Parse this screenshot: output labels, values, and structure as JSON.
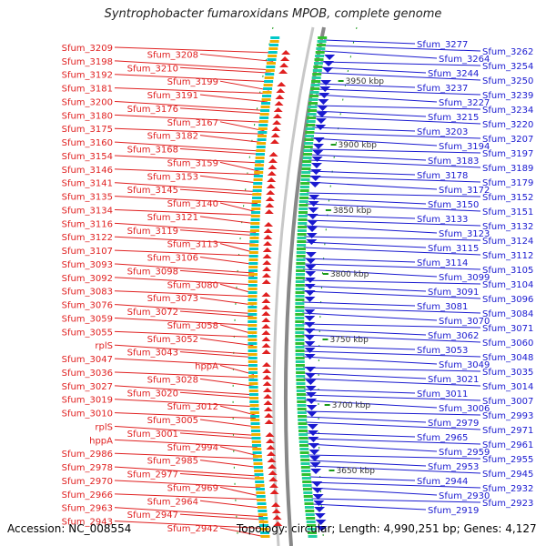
{
  "title": "Syntrophobacter fumaroxidans MPOB, complete genome",
  "footer": {
    "accession": "Accession: NC_008554",
    "topology": "Topology: circular; Length: 4,990,251 bp; Genes: 4,127"
  },
  "kbp_labels": [
    "3950 kbp",
    "3900 kbp",
    "3850 kbp",
    "3800 kbp",
    "3750 kbp",
    "3700 kbp",
    "3650 kbp"
  ],
  "left_labels": [
    "Sfum_3209",
    "Sfum_3208",
    "Sfum_3198",
    "Sfum_3210",
    "Sfum_3192",
    "Sfum_3199",
    "Sfum_3181",
    "Sfum_3191",
    "Sfum_3200",
    "Sfum_3176",
    "Sfum_3180",
    "Sfum_3167",
    "Sfum_3175",
    "Sfum_3182",
    "Sfum_3160",
    "Sfum_3168",
    "Sfum_3154",
    "Sfum_3159",
    "Sfum_3146",
    "Sfum_3153",
    "Sfum_3141",
    "Sfum_3145",
    "Sfum_3135",
    "Sfum_3140",
    "Sfum_3134",
    "Sfum_3121",
    "Sfum_3116",
    "Sfum_3119",
    "Sfum_3122",
    "Sfum_3113",
    "Sfum_3107",
    "Sfum_3106",
    "Sfum_3093",
    "Sfum_3098",
    "Sfum_3092",
    "Sfum_3080",
    "Sfum_3083",
    "Sfum_3073",
    "Sfum_3076",
    "Sfum_3072",
    "Sfum_3059",
    "Sfum_3058",
    "Sfum_3055",
    "Sfum_3052",
    "rplS",
    "Sfum_3043",
    "Sfum_3047",
    "hppA",
    "Sfum_3036",
    "Sfum_3028",
    "Sfum_3027",
    "Sfum_3020",
    "Sfum_3019",
    "Sfum_3012",
    "Sfum_3010",
    "Sfum_3005",
    "rplS",
    "Sfum_3001",
    "hppA",
    "Sfum_2994",
    "Sfum_2986",
    "Sfum_2985",
    "Sfum_2978",
    "Sfum_2977",
    "Sfum_2970",
    "Sfum_2969",
    "Sfum_2966",
    "Sfum_2964",
    "Sfum_2963",
    "Sfum_2947",
    "Sfum_2943",
    "Sfum_2942"
  ],
  "right_labels": [
    "Sfum_3277",
    "Sfum_3262",
    "Sfum_3264",
    "Sfum_3254",
    "Sfum_3244",
    "Sfum_3250",
    "Sfum_3237",
    "Sfum_3239",
    "Sfum_3227",
    "Sfum_3234",
    "Sfum_3215",
    "Sfum_3220",
    "Sfum_3203",
    "Sfum_3207",
    "Sfum_3194",
    "Sfum_3197",
    "Sfum_3183",
    "Sfum_3189",
    "Sfum_3178",
    "Sfum_3179",
    "Sfum_3172",
    "Sfum_3152",
    "Sfum_3150",
    "Sfum_3151",
    "Sfum_3133",
    "Sfum_3132",
    "Sfum_3123",
    "Sfum_3124",
    "Sfum_3115",
    "Sfum_3112",
    "Sfum_3114",
    "Sfum_3105",
    "Sfum_3099",
    "Sfum_3104",
    "Sfum_3091",
    "Sfum_3096",
    "Sfum_3081",
    "Sfum_3084",
    "Sfum_3070",
    "Sfum_3071",
    "Sfum_3062",
    "Sfum_3060",
    "Sfum_3053",
    "Sfum_3048",
    "Sfum_3049",
    "Sfum_3035",
    "Sfum_3021",
    "Sfum_3014",
    "Sfum_3011",
    "Sfum_3007",
    "Sfum_3006",
    "Sfum_2993",
    "Sfum_2979",
    "Sfum_2971",
    "Sfum_2965",
    "Sfum_2961",
    "Sfum_2959",
    "Sfum_2955",
    "Sfum_2953",
    "Sfum_2945",
    "Sfum_2944",
    "Sfum_2932",
    "Sfum_2930",
    "Sfum_2923",
    "Sfum_2919"
  ],
  "colors": {
    "left": "#e02020",
    "right": "#1a1ad0",
    "backbone": "#888888",
    "kbp_tick": "#1a9a1a"
  }
}
